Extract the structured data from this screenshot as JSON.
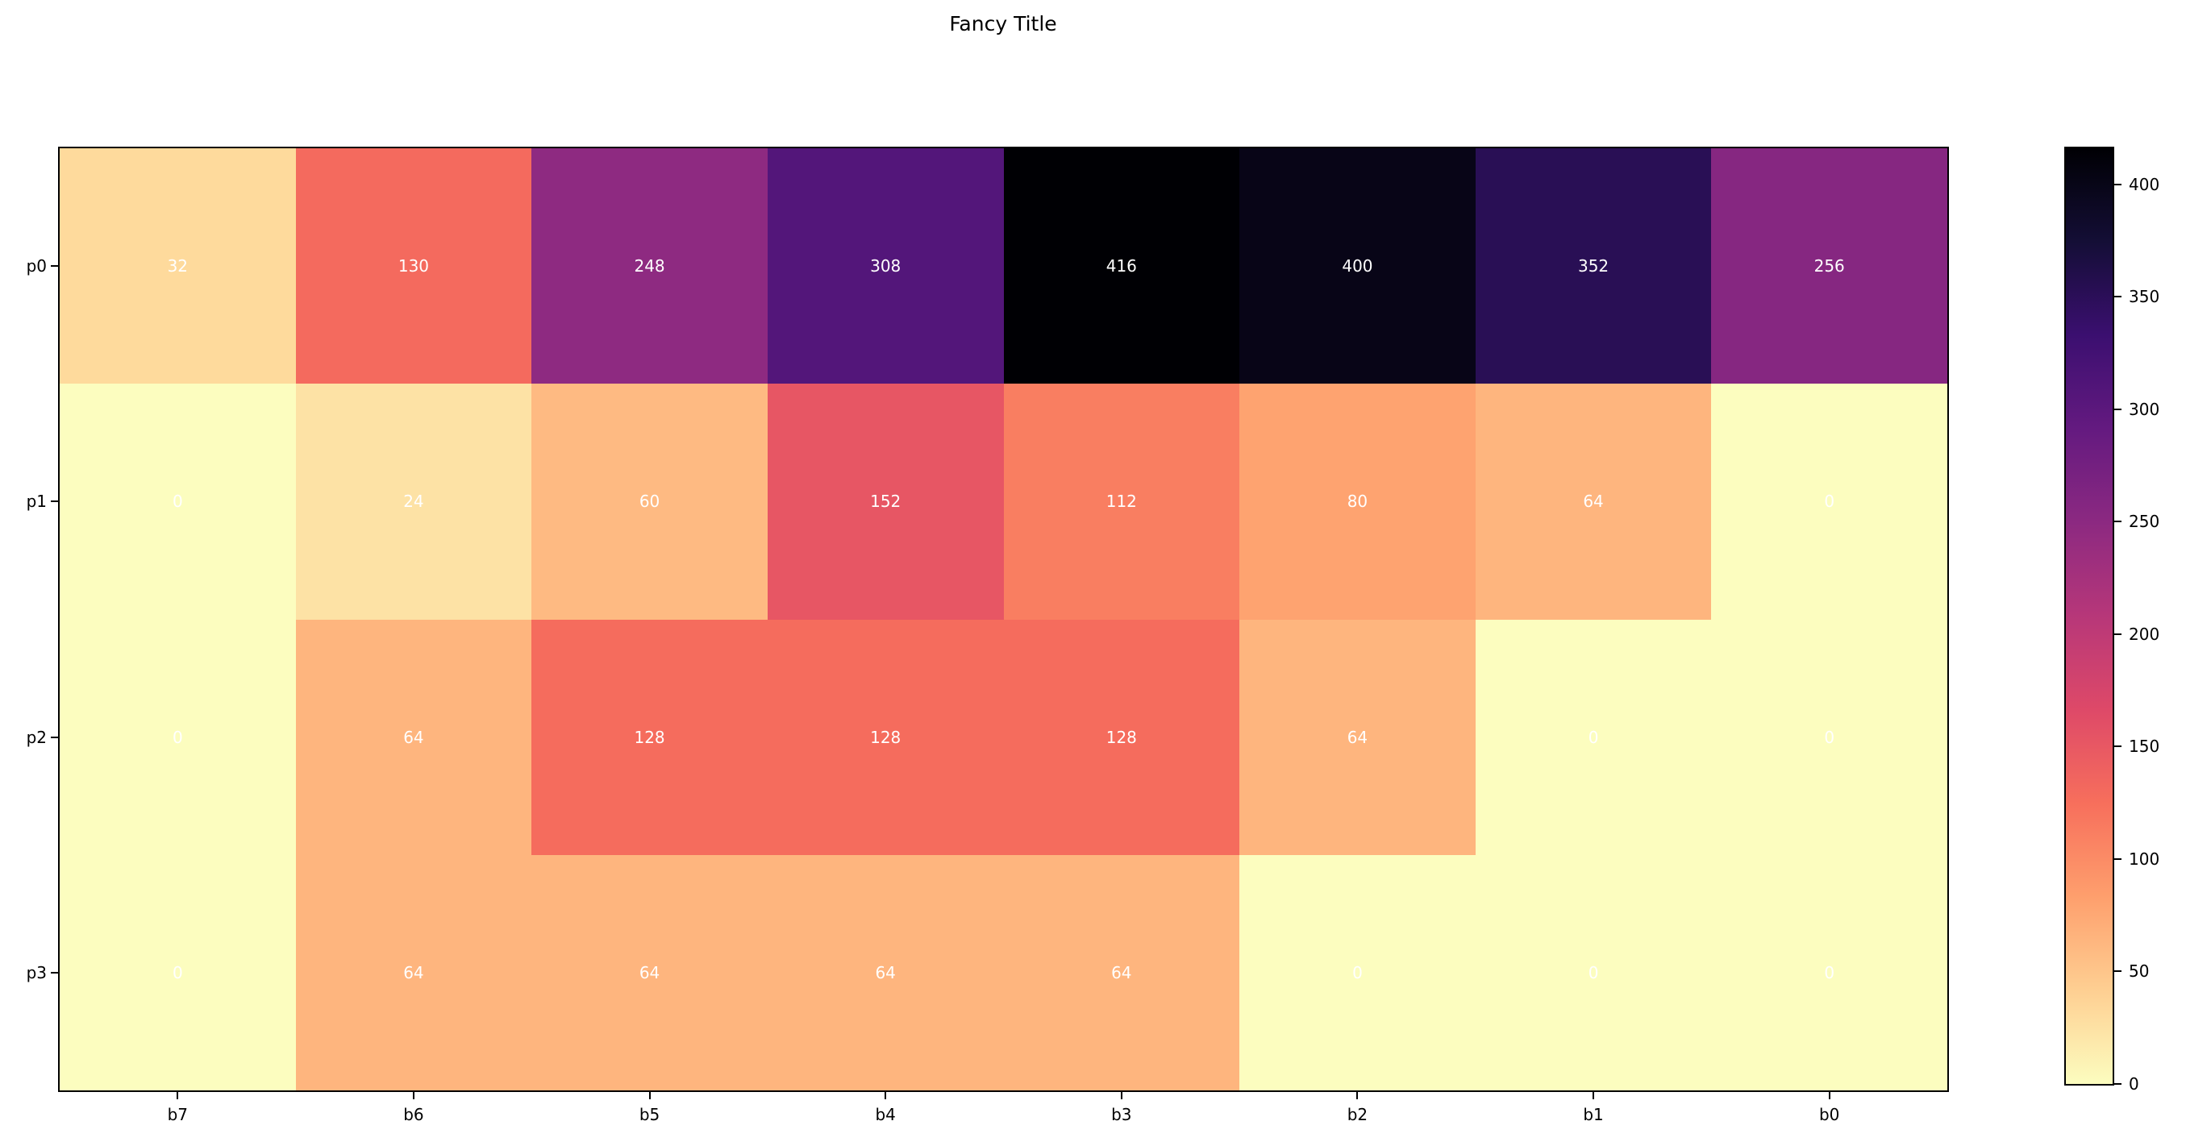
{
  "chart_data": {
    "type": "heatmap",
    "title": "Fancy Title",
    "x_labels": [
      "b7",
      "b6",
      "b5",
      "b4",
      "b3",
      "b2",
      "b1",
      "b0"
    ],
    "y_labels": [
      "p0",
      "p1",
      "p2",
      "p3"
    ],
    "values": [
      [
        32,
        130,
        248,
        308,
        416,
        400,
        352,
        256
      ],
      [
        0,
        24,
        60,
        152,
        112,
        80,
        64,
        0
      ],
      [
        0,
        64,
        128,
        128,
        128,
        64,
        0,
        0
      ],
      [
        0,
        64,
        64,
        64,
        64,
        0,
        0,
        0
      ]
    ],
    "vmin": 0,
    "vmax": 416,
    "annotation_text_color": "#ffffff",
    "background_color": "#ffffff",
    "axis_text_color": "#000000",
    "colormap": {
      "name": "magma_r",
      "stops_low_to_high": [
        "#fcfdbf",
        "#fecf92",
        "#fe9f6d",
        "#f76f5c",
        "#de4968",
        "#b73779",
        "#8c2981",
        "#641a80",
        "#3b0f70",
        "#140e36",
        "#000004"
      ]
    },
    "colorbar": {
      "position": "right",
      "ticks": [
        0,
        50,
        100,
        150,
        200,
        250,
        300,
        350,
        400
      ]
    },
    "grid": false,
    "legend": false
  }
}
